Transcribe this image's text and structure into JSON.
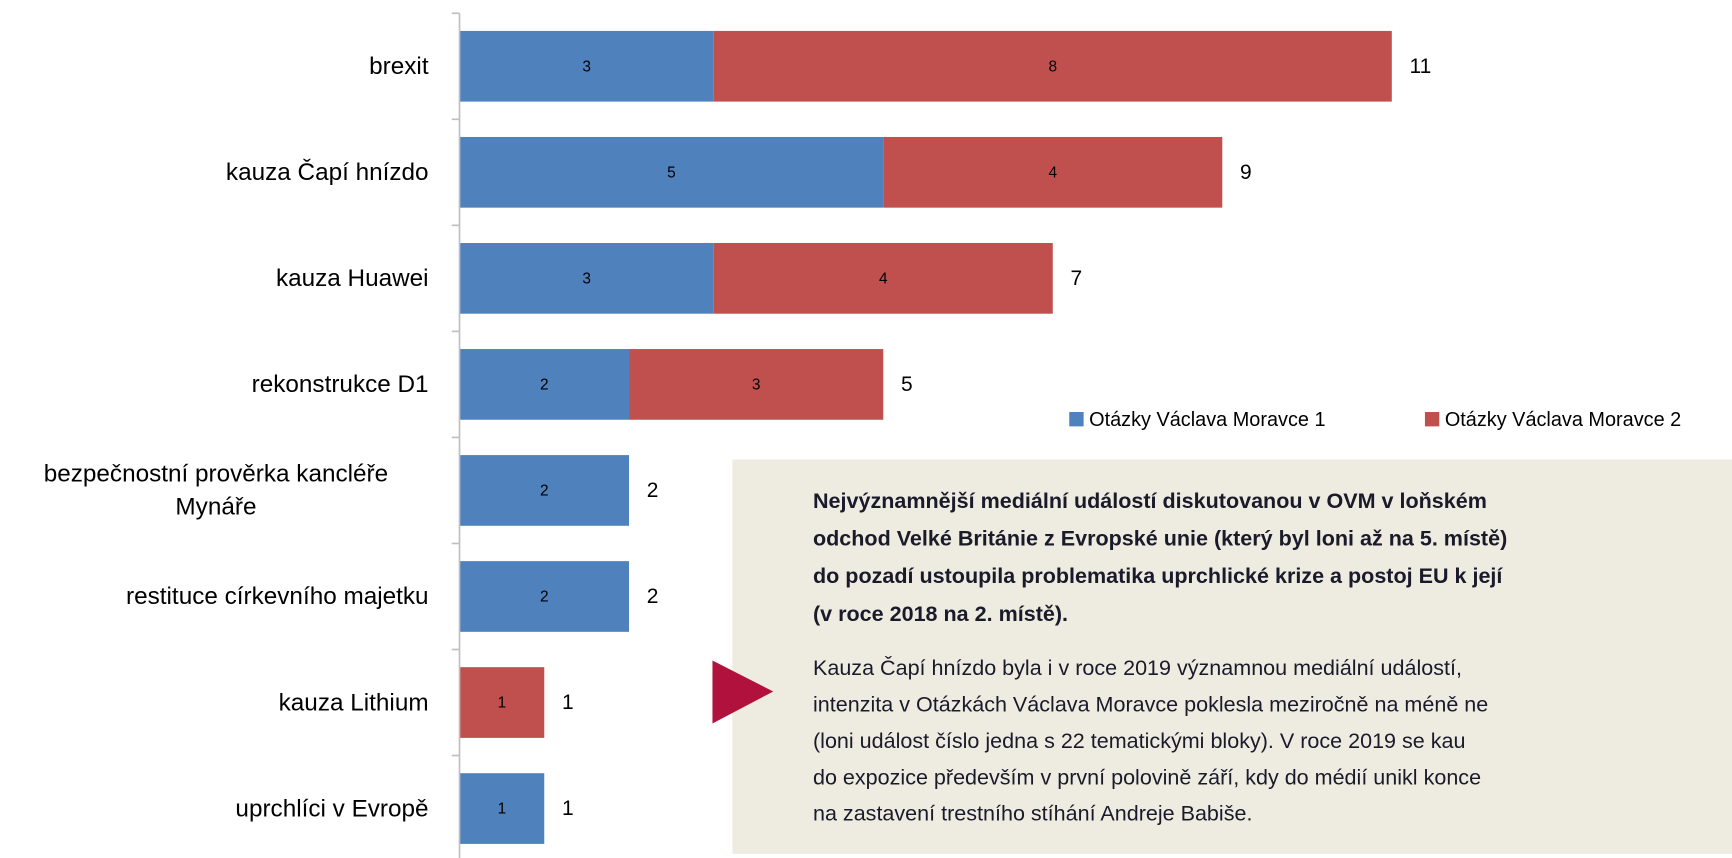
{
  "chart_data": {
    "type": "bar",
    "orientation": "horizontal",
    "stacked": true,
    "categories": [
      "brexit",
      "kauza Čapí hnízdo",
      "kauza Huawei",
      "rekonstrukce D1",
      "bezpečnostní prověrka kancléře Mynáře",
      "restituce církevního majetku",
      "kauza Lithium",
      "uprchlíci v Evropě"
    ],
    "series": [
      {
        "name": "Otázky Václava Moravce 1",
        "color": "#4f81bd",
        "values": [
          3,
          5,
          3,
          2,
          2,
          2,
          null,
          1
        ]
      },
      {
        "name": "Otázky Václava Moravce 2",
        "color": "#c0504d",
        "values": [
          8,
          4,
          4,
          3,
          null,
          null,
          1,
          null
        ]
      }
    ],
    "totals": [
      11,
      9,
      7,
      5,
      2,
      2,
      1,
      1
    ],
    "xlim": [
      0,
      11
    ],
    "annotation": {
      "bold_lines": [
        "Nejvýznamnější mediální událostí diskutovanou v OVM v loňském",
        "odchod Velké Británie z Evropské unie (který byl loni až na 5. místě)",
        "do pozadí ustoupila problematika uprchlické krize a postoj EU k její",
        "(v roce 2018 na 2. místě)."
      ],
      "lines": [
        "Kauza Čapí hnízdo byla i v roce 2019 významnou mediální událostí,",
        "intenzita v Otázkách Václava Moravce poklesla meziročně na méně ne",
        "(loni událost číslo jedna s 22 tematickými bloky). V roce 2019 se kau",
        "do expozice především v první polovině září, kdy do médií unikl konce",
        "na zastavení trestního stíhání Andreje Babiše."
      ]
    }
  }
}
